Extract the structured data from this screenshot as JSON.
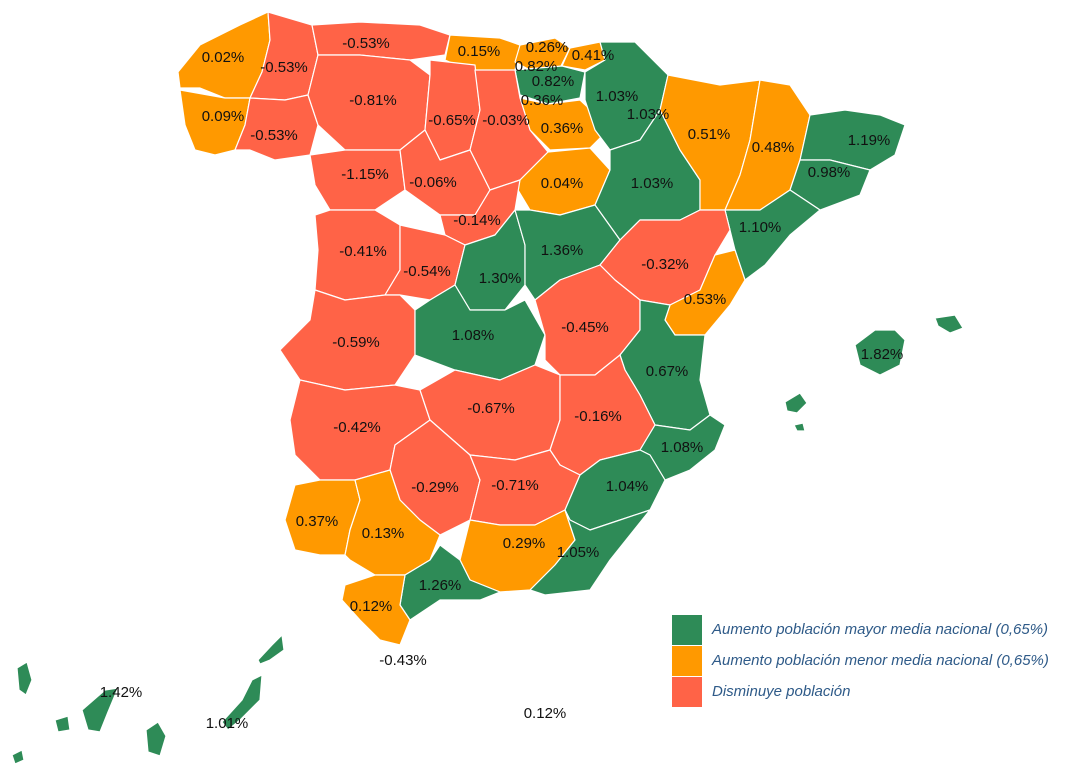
{
  "colors": {
    "above_avg": "#2e8b57",
    "below_avg": "#ff9900",
    "decrease": "#ff6347"
  },
  "legend": [
    {
      "key": "above_avg",
      "label": "Aumento población mayor media nacional (0,65%)"
    },
    {
      "key": "below_avg",
      "label": "Aumento población menor media nacional (0,65%)"
    },
    {
      "key": "decrease",
      "label": "Disminuye población"
    }
  ],
  "provinces": [
    {
      "id": "a-coruna",
      "value": "0.02%",
      "cat": "below_avg"
    },
    {
      "id": "pontevedra",
      "value": "0.09%",
      "cat": "below_avg"
    },
    {
      "id": "lugo",
      "value": "-0.53%",
      "cat": "decrease"
    },
    {
      "id": "ourense",
      "value": "-0.53%",
      "cat": "decrease"
    },
    {
      "id": "asturias",
      "value": "-0.53%",
      "cat": "decrease"
    },
    {
      "id": "cantabria",
      "value": "0.15%",
      "cat": "below_avg"
    },
    {
      "id": "bizkaia",
      "value": "0.26%",
      "cat": "below_avg"
    },
    {
      "id": "gipuzkoa",
      "value": "0.41%",
      "cat": "below_avg"
    },
    {
      "id": "alava",
      "value": "0.82%",
      "cat": "above_avg"
    },
    {
      "id": "alava-2",
      "value": "0.82%",
      "cat": "above_avg"
    },
    {
      "id": "la-rioja",
      "value": "0.36%",
      "cat": "below_avg"
    },
    {
      "id": "navarra",
      "value": "1.03%",
      "cat": "above_avg"
    },
    {
      "id": "huesca-w",
      "value": "1.03%",
      "cat": "above_avg"
    },
    {
      "id": "leon",
      "value": "-0.81%",
      "cat": "decrease"
    },
    {
      "id": "palencia",
      "value": "-0.65%",
      "cat": "decrease"
    },
    {
      "id": "burgos",
      "value": "-0.03%",
      "cat": "decrease"
    },
    {
      "id": "soria-r",
      "value": "0.36%",
      "cat": "below_avg"
    },
    {
      "id": "zamora",
      "value": "-1.15%",
      "cat": "decrease"
    },
    {
      "id": "valladolid",
      "value": "-0.06%",
      "cat": "decrease"
    },
    {
      "id": "soria",
      "value": "0.04%",
      "cat": "below_avg"
    },
    {
      "id": "zaragoza",
      "value": "1.03%",
      "cat": "above_avg"
    },
    {
      "id": "huesca",
      "value": "0.51%",
      "cat": "below_avg"
    },
    {
      "id": "lleida",
      "value": "0.48%",
      "cat": "below_avg"
    },
    {
      "id": "girona",
      "value": "1.19%",
      "cat": "above_avg"
    },
    {
      "id": "barcelona",
      "value": "0.98%",
      "cat": "above_avg"
    },
    {
      "id": "tarragona",
      "value": "1.10%",
      "cat": "above_avg"
    },
    {
      "id": "segovia",
      "value": "-0.14%",
      "cat": "decrease"
    },
    {
      "id": "salamanca",
      "value": "-0.41%",
      "cat": "decrease"
    },
    {
      "id": "avila",
      "value": "-0.54%",
      "cat": "decrease"
    },
    {
      "id": "madrid",
      "value": "1.30%",
      "cat": "above_avg"
    },
    {
      "id": "guadalajara",
      "value": "1.36%",
      "cat": "above_avg"
    },
    {
      "id": "teruel",
      "value": "-0.32%",
      "cat": "decrease"
    },
    {
      "id": "castellon",
      "value": "0.53%",
      "cat": "below_avg"
    },
    {
      "id": "caceres",
      "value": "-0.59%",
      "cat": "decrease"
    },
    {
      "id": "toledo",
      "value": "1.08%",
      "cat": "above_avg"
    },
    {
      "id": "cuenca",
      "value": "-0.45%",
      "cat": "decrease"
    },
    {
      "id": "valencia",
      "value": "0.67%",
      "cat": "above_avg"
    },
    {
      "id": "baleares",
      "value": "1.82%",
      "cat": "above_avg"
    },
    {
      "id": "badajoz",
      "value": "-0.42%",
      "cat": "decrease"
    },
    {
      "id": "ciudad-real",
      "value": "-0.67%",
      "cat": "decrease"
    },
    {
      "id": "albacete",
      "value": "-0.16%",
      "cat": "decrease"
    },
    {
      "id": "alicante",
      "value": "1.08%",
      "cat": "above_avg"
    },
    {
      "id": "cordoba",
      "value": "-0.29%",
      "cat": "decrease"
    },
    {
      "id": "jaen",
      "value": "-0.71%",
      "cat": "decrease"
    },
    {
      "id": "murcia",
      "value": "1.04%",
      "cat": "above_avg"
    },
    {
      "id": "huelva",
      "value": "0.37%",
      "cat": "below_avg"
    },
    {
      "id": "sevilla",
      "value": "0.13%",
      "cat": "below_avg"
    },
    {
      "id": "granada",
      "value": "0.29%",
      "cat": "below_avg"
    },
    {
      "id": "almeria",
      "value": "1.05%",
      "cat": "above_avg"
    },
    {
      "id": "malaga",
      "value": "1.26%",
      "cat": "above_avg"
    },
    {
      "id": "cadiz",
      "value": "0.12%",
      "cat": "below_avg"
    },
    {
      "id": "ceuta",
      "value": "-0.43%",
      "cat": null
    },
    {
      "id": "santa-cruz-tenerife",
      "value": "1.42%",
      "cat": "above_avg"
    },
    {
      "id": "las-palmas",
      "value": "1.01%",
      "cat": "above_avg"
    },
    {
      "id": "melilla",
      "value": "0.12%",
      "cat": null
    }
  ]
}
